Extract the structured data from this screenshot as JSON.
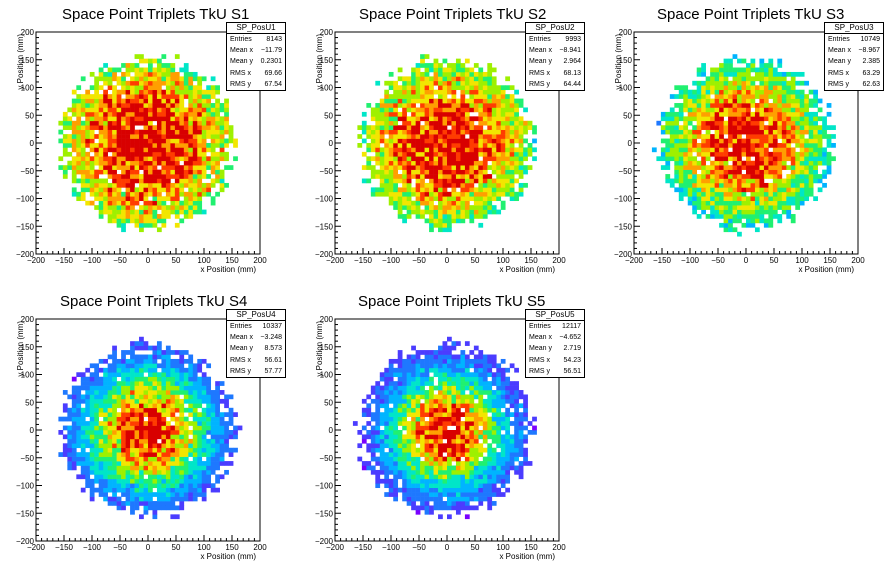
{
  "chart_data": [
    {
      "type": "heatmap",
      "title": "Space Point Triplets TkU S1",
      "xlabel": "x Position (mm)",
      "ylabel": "y Position (mm)",
      "xlim": [
        -200,
        200
      ],
      "ylim": [
        -200,
        200
      ],
      "xticks": [
        "−200",
        "−150",
        "−100",
        "−50",
        "0",
        "50",
        "100",
        "150",
        "200"
      ],
      "yticks": [
        "200",
        "150",
        "100",
        "50",
        "0",
        "−50",
        "−100",
        "−150",
        "−200"
      ],
      "stats": {
        "name": "SP_PosU1",
        "rows": [
          {
            "label": "Entries",
            "value": "8143"
          },
          {
            "label": "Mean x",
            "value": "−11.79"
          },
          {
            "label": "Mean y",
            "value": "0.2301"
          },
          {
            "label": "RMS x",
            "value": "69.66"
          },
          {
            "label": "RMS y",
            "value": "67.54"
          }
        ]
      },
      "spread": 140,
      "seed": 11
    },
    {
      "type": "heatmap",
      "title": "Space Point Triplets TkU S2",
      "xlabel": "x Position (mm)",
      "ylabel": "y Position (mm)",
      "xlim": [
        -200,
        200
      ],
      "ylim": [
        -200,
        200
      ],
      "xticks": [
        "−200",
        "−150",
        "−100",
        "−50",
        "0",
        "50",
        "100",
        "150",
        "200"
      ],
      "yticks": [
        "200",
        "150",
        "100",
        "50",
        "0",
        "−50",
        "−100",
        "−150",
        "−200"
      ],
      "stats": {
        "name": "SP_PosU2",
        "rows": [
          {
            "label": "Entries",
            "value": "9993"
          },
          {
            "label": "Mean x",
            "value": "−8.941"
          },
          {
            "label": "Mean y",
            "value": "2.964"
          },
          {
            "label": "RMS x",
            "value": "68.13"
          },
          {
            "label": "RMS y",
            "value": "64.44"
          }
        ]
      },
      "spread": 130,
      "seed": 22
    },
    {
      "type": "heatmap",
      "title": "Space Point Triplets TkU S3",
      "xlabel": "x Position (mm)",
      "ylabel": "y Position (mm)",
      "xlim": [
        -200,
        200
      ],
      "ylim": [
        -200,
        200
      ],
      "xticks": [
        "−200",
        "−150",
        "−100",
        "−50",
        "0",
        "50",
        "100",
        "150",
        "200"
      ],
      "yticks": [
        "200",
        "150",
        "100",
        "50",
        "0",
        "−50",
        "−100",
        "−150",
        "−200"
      ],
      "stats": {
        "name": "SP_PosU3",
        "rows": [
          {
            "label": "Entries",
            "value": "10749"
          },
          {
            "label": "Mean x",
            "value": "−8.967"
          },
          {
            "label": "Mean y",
            "value": "2.385"
          },
          {
            "label": "RMS x",
            "value": "63.29"
          },
          {
            "label": "RMS y",
            "value": "62.63"
          }
        ]
      },
      "spread": 110,
      "seed": 33
    },
    {
      "type": "heatmap",
      "title": "Space Point Triplets TkU S4",
      "xlabel": "x Position (mm)",
      "ylabel": "y Position (mm)",
      "xlim": [
        -200,
        200
      ],
      "ylim": [
        -200,
        200
      ],
      "xticks": [
        "−200",
        "−150",
        "−100",
        "−50",
        "0",
        "50",
        "100",
        "150",
        "200"
      ],
      "yticks": [
        "200",
        "150",
        "100",
        "50",
        "0",
        "−50",
        "−100",
        "−150",
        "−200"
      ],
      "stats": {
        "name": "SP_PosU4",
        "rows": [
          {
            "label": "Entries",
            "value": "10337"
          },
          {
            "label": "Mean x",
            "value": "−3.248"
          },
          {
            "label": "Mean y",
            "value": "8.573"
          },
          {
            "label": "RMS x",
            "value": "56.61"
          },
          {
            "label": "RMS y",
            "value": "57.77"
          }
        ]
      },
      "spread": 75,
      "seed": 44
    },
    {
      "type": "heatmap",
      "title": "Space Point Triplets TkU S5",
      "xlabel": "x Position (mm)",
      "ylabel": "y Position (mm)",
      "xlim": [
        -200,
        200
      ],
      "ylim": [
        -200,
        200
      ],
      "xticks": [
        "−200",
        "−150",
        "−100",
        "−50",
        "0",
        "50",
        "100",
        "150",
        "200"
      ],
      "yticks": [
        "200",
        "150",
        "100",
        "50",
        "0",
        "−50",
        "−100",
        "−150",
        "−200"
      ],
      "stats": {
        "name": "SP_PosU5",
        "rows": [
          {
            "label": "Entries",
            "value": "12117"
          },
          {
            "label": "Mean x",
            "value": "−4.652"
          },
          {
            "label": "Mean y",
            "value": "2.719"
          },
          {
            "label": "RMS x",
            "value": "54.23"
          },
          {
            "label": "RMS y",
            "value": "56.51"
          }
        ]
      },
      "spread": 70,
      "seed": 55
    }
  ],
  "palette": [
    "#7a00ff",
    "#4b3cff",
    "#1e78ff",
    "#00b4ff",
    "#00e6c8",
    "#20f070",
    "#9ef000",
    "#f2e600",
    "#ff9f00",
    "#ff3c00",
    "#d80000"
  ]
}
